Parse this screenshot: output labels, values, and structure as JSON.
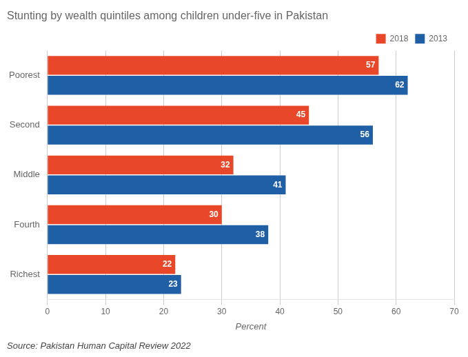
{
  "chart_data": {
    "type": "bar",
    "orientation": "horizontal",
    "title": "Stunting by wealth quintiles among children under-five in Pakistan",
    "source": "Source: Pakistan Human Capital Review 2022",
    "categories": [
      "Poorest",
      "Second",
      "Middle",
      "Fourth",
      "Richest"
    ],
    "series": [
      {
        "name": "2018",
        "color": "#e8472a",
        "values": [
          57,
          45,
          32,
          30,
          22
        ]
      },
      {
        "name": "2013",
        "color": "#1f5fa6",
        "values": [
          62,
          56,
          41,
          38,
          23
        ]
      }
    ],
    "xlabel": "Percent",
    "xlim": [
      0,
      70
    ],
    "xticks": [
      0,
      10,
      20,
      30,
      40,
      50,
      60,
      70
    ],
    "grid": "x",
    "legend": "upper right",
    "data_labels": true
  }
}
